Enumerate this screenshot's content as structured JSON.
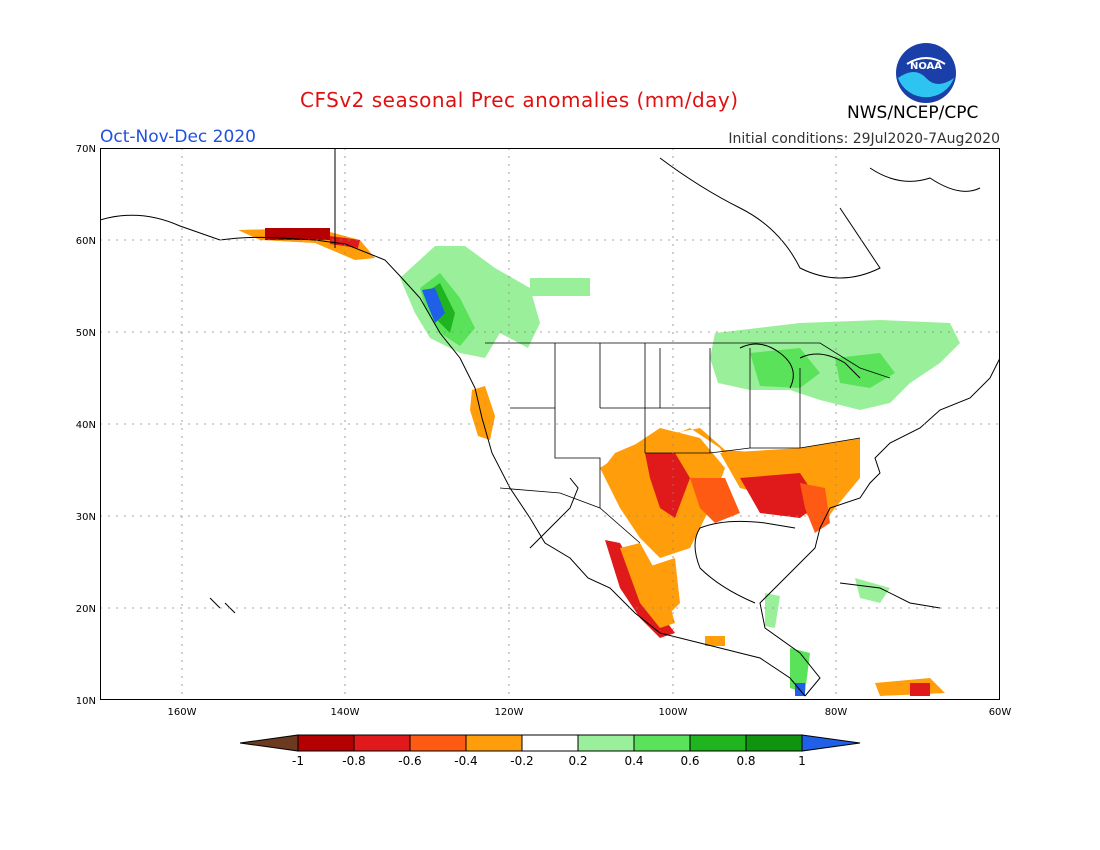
{
  "header": {
    "title": "CFSv2 seasonal Prec anomalies (mm/day)",
    "period": "Oct-Nov-Dec 2020",
    "initial_conditions": "Initial conditions: 29Jul2020-7Aug2020",
    "agency": "NWS/NCEP/CPC",
    "logo_text": "NOAA"
  },
  "map": {
    "lat_labels": [
      "70N",
      "60N",
      "50N",
      "40N",
      "30N",
      "20N",
      "10N"
    ],
    "lon_labels": [
      "160W",
      "140W",
      "120W",
      "100W",
      "80W",
      "60W"
    ]
  },
  "colorbar": {
    "labels": [
      "-1",
      "-0.8",
      "-0.6",
      "-0.4",
      "-0.2",
      "0.2",
      "0.4",
      "0.6",
      "0.8",
      "1"
    ],
    "colors": [
      "#6b3a20",
      "#b40000",
      "#e01a1a",
      "#ff5a14",
      "#ff9d0a",
      "#ffffff",
      "#9af09a",
      "#5ae25a",
      "#20b420",
      "#109410",
      "#2060e8"
    ]
  },
  "chart_data": {
    "type": "heatmap",
    "title": "CFSv2 seasonal Prec anomalies (mm/day)",
    "lat_range": [
      10,
      70
    ],
    "lon_range": [
      -170,
      -60
    ],
    "levels": [
      -1,
      -0.8,
      -0.6,
      -0.4,
      -0.2,
      0.2,
      0.4,
      0.6,
      0.8,
      1
    ]
  }
}
